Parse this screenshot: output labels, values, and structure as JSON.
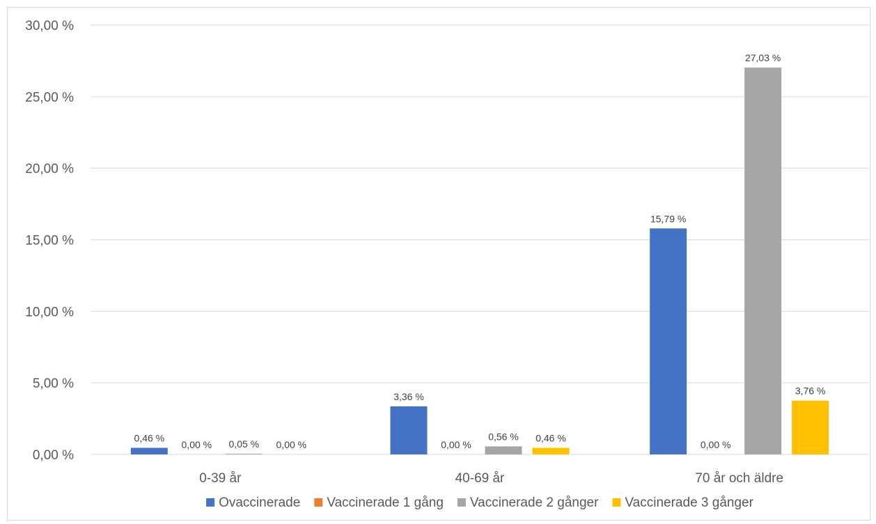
{
  "chart_data": {
    "type": "bar",
    "title": "",
    "xlabel": "",
    "ylabel": "",
    "categories": [
      "0-39 år",
      "40-69 år",
      "70 år och äldre"
    ],
    "series": [
      {
        "name": "Ovaccinerade",
        "color": "#4472c4",
        "values": [
          0.46,
          3.36,
          15.79
        ],
        "labels": [
          "0,46 %",
          "3,36 %",
          "15,79 %"
        ]
      },
      {
        "name": "Vaccinerade 1 gång",
        "color": "#ed7d31",
        "values": [
          0.0,
          0.0,
          0.0
        ],
        "labels": [
          "0,00 %",
          "0,00 %",
          "0,00 %"
        ]
      },
      {
        "name": "Vaccinerade 2 gånger",
        "color": "#a5a5a5",
        "values": [
          0.05,
          0.56,
          27.03
        ],
        "labels": [
          "0,05 %",
          "0,56 %",
          "27,03 %"
        ]
      },
      {
        "name": "Vaccinerade 3 gånger",
        "color": "#ffc000",
        "values": [
          0.0,
          0.46,
          3.76
        ],
        "labels": [
          "0,00 %",
          "0,46 %",
          "3,76 %"
        ]
      }
    ],
    "ylim": [
      0,
      30
    ],
    "y_ticks": [
      0,
      5,
      10,
      15,
      20,
      25,
      30
    ],
    "y_tick_labels": [
      "0,00 %",
      "5,00 %",
      "10,00 %",
      "15,00 %",
      "20,00 %",
      "25,00 %",
      "30,00 %"
    ],
    "grid": true,
    "legend_position": "bottom",
    "colors": {
      "gridline": "#d9d9d9",
      "axis_text": "#595959",
      "data_label_text": "#404040",
      "frame": "#d9d9d9"
    }
  }
}
